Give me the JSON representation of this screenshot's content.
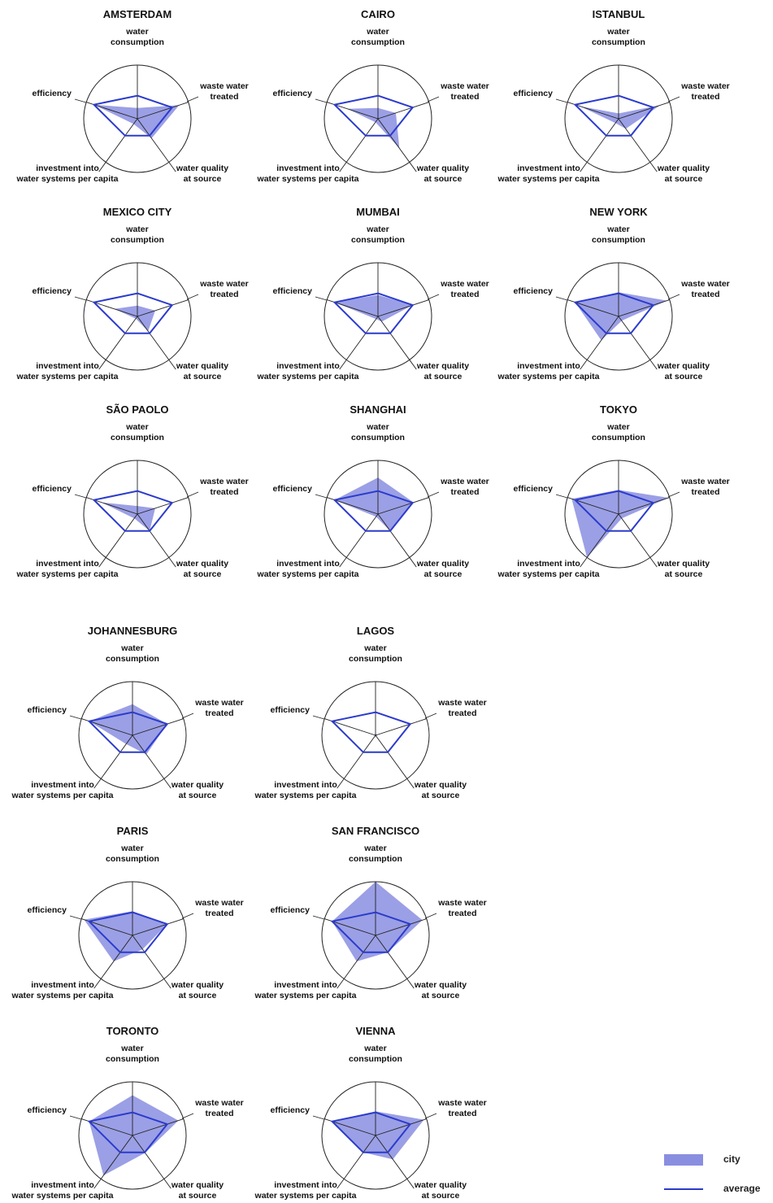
{
  "figure": {
    "axes": [
      "water consumption",
      "waste water treated",
      "water quality at source",
      "investment into water systems per capita",
      "efficiency"
    ],
    "axis_label_lines": [
      [
        "water",
        "consumption"
      ],
      [
        "waste water",
        "treated"
      ],
      [
        "water quality",
        "at source"
      ],
      [
        "investment into",
        "water systems per capita"
      ],
      [
        "efficiency"
      ]
    ],
    "colors": {
      "city_fill": "#8a8ee0",
      "city_fill_opacity": 0.85,
      "average_line": "#2b3bcc",
      "circle": "#222222",
      "axis": "#222222",
      "text": "#111111"
    }
  },
  "legend": {
    "city_label": "city",
    "average_label": "average"
  },
  "chart_data": {
    "type": "radar",
    "scale": [
      0,
      1
    ],
    "axes": [
      "water consumption",
      "waste water treated",
      "water quality at source",
      "investment into water systems per capita",
      "efficiency"
    ],
    "average": [
      0.43,
      0.68,
      0.39,
      0.39,
      0.85
    ],
    "charts": [
      {
        "title": "AMSTERDAM",
        "city": [
          0.2,
          0.82,
          0.45,
          0.12,
          0.85
        ]
      },
      {
        "title": "CAIRO",
        "city": [
          0.2,
          0.35,
          0.68,
          0.08,
          0.6
        ]
      },
      {
        "title": "ISTANBUL",
        "city": [
          0.1,
          0.82,
          0.23,
          0.1,
          0.75
        ]
      },
      {
        "title": "MEXICO CITY",
        "city": [
          0.2,
          0.35,
          0.34,
          0.05,
          0.45
        ]
      },
      {
        "title": "MUMBAI",
        "city": [
          0.4,
          0.68,
          0.12,
          0.06,
          0.85
        ]
      },
      {
        "title": "NEW YORK",
        "city": [
          0.45,
          0.95,
          0.1,
          0.55,
          0.85
        ]
      },
      {
        "title": "SÃO PAOLO",
        "city": [
          0.15,
          0.35,
          0.39,
          0.1,
          0.7
        ]
      },
      {
        "title": "SHANGHAI",
        "city": [
          0.68,
          0.7,
          0.4,
          0.06,
          0.85
        ]
      },
      {
        "title": "TOKYO",
        "city": [
          0.45,
          0.98,
          0.1,
          1.0,
          0.92
        ]
      },
      {
        "title": "JOHANNESBURG",
        "city": [
          0.58,
          0.68,
          0.44,
          0.2,
          0.85
        ]
      },
      {
        "title": "LAGOS",
        "city": [
          0.03,
          0.03,
          0.03,
          0.03,
          0.02
        ]
      },
      {
        "title": "PARIS",
        "city": [
          0.45,
          0.68,
          0.32,
          0.6,
          0.95
        ]
      },
      {
        "title": "SAN FRANCISCO",
        "city": [
          1.0,
          0.92,
          0.39,
          0.6,
          0.85
        ]
      },
      {
        "title": "TORONTO",
        "city": [
          0.75,
          0.9,
          0.4,
          0.92,
          0.85
        ]
      },
      {
        "title": "VIENNA",
        "city": [
          0.45,
          0.95,
          0.55,
          0.39,
          0.85
        ]
      }
    ]
  }
}
